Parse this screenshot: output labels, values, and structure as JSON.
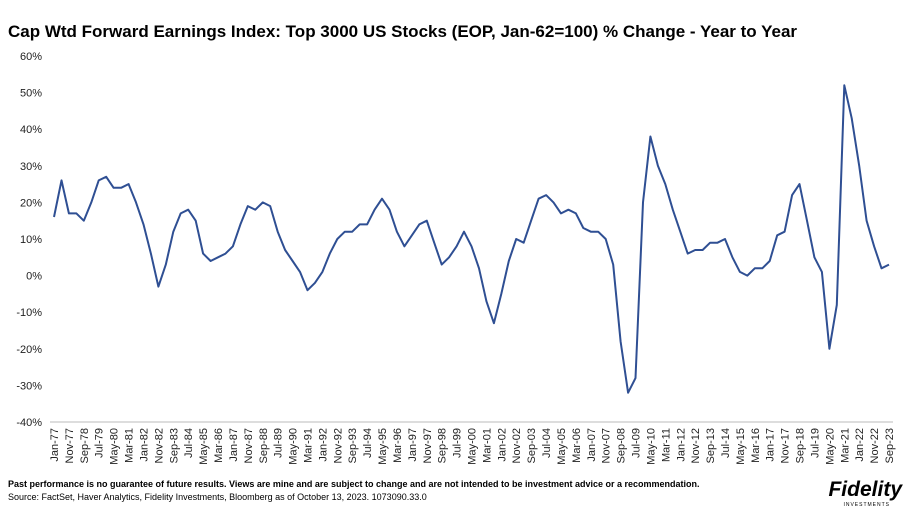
{
  "chart_data": {
    "type": "line",
    "title": "Cap Wtd Forward Earnings Index: Top 3000 US Stocks (EOP, Jan-62=100) % Change - Year to Year",
    "categories": [
      "Jan-77",
      null,
      "Nov-77",
      null,
      "Sep-78",
      null,
      "Jul-79",
      null,
      "May-80",
      null,
      "Mar-81",
      null,
      "Jan-82",
      null,
      "Nov-82",
      null,
      "Sep-83",
      null,
      "Jul-84",
      null,
      "May-85",
      null,
      "Mar-86",
      null,
      "Jan-87",
      null,
      "Nov-87",
      null,
      "Sep-88",
      null,
      "Jul-89",
      null,
      "May-90",
      null,
      "Mar-91",
      null,
      "Jan-92",
      null,
      "Nov-92",
      null,
      "Sep-93",
      null,
      "Jul-94",
      null,
      "May-95",
      null,
      "Mar-96",
      null,
      "Jan-97",
      null,
      "Nov-97",
      null,
      "Sep-98",
      null,
      "Jul-99",
      null,
      "May-00",
      null,
      "Mar-01",
      null,
      "Jan-02",
      null,
      "Nov-02",
      null,
      "Sep-03",
      null,
      "Jul-04",
      null,
      "May-05",
      null,
      "Mar-06",
      null,
      "Jan-07",
      null,
      "Nov-07",
      null,
      "Sep-08",
      null,
      "Jul-09",
      null,
      "May-10",
      null,
      "Mar-11",
      null,
      "Jan-12",
      null,
      "Nov-12",
      null,
      "Sep-13",
      null,
      "Jul-14",
      null,
      "May-15",
      null,
      "Mar-16",
      null,
      "Jan-17",
      null,
      "Nov-17",
      null,
      "Sep-18",
      null,
      "Jul-19",
      null,
      "May-20",
      null,
      "Mar-21",
      null,
      "Jan-22",
      null,
      "Nov-22",
      null,
      "Sep-23"
    ],
    "values": [
      16,
      26,
      17,
      17,
      15,
      20,
      26,
      27,
      24,
      24,
      25,
      20,
      14,
      6,
      -3,
      3,
      12,
      17,
      18,
      15,
      6,
      4,
      5,
      6,
      8,
      14,
      19,
      18,
      20,
      19,
      12,
      7,
      4,
      1,
      -4,
      -2,
      1,
      6,
      10,
      12,
      12,
      14,
      14,
      18,
      21,
      18,
      12,
      8,
      11,
      14,
      15,
      9,
      3,
      5,
      8,
      12,
      8,
      2,
      -7,
      -13,
      -5,
      4,
      10,
      9,
      15,
      21,
      22,
      20,
      17,
      18,
      17,
      13,
      12,
      12,
      10,
      3,
      -18,
      -32,
      -28,
      20,
      38,
      30,
      25,
      18,
      12,
      6,
      7,
      7,
      9,
      9,
      10,
      5,
      1,
      0,
      2,
      2,
      4,
      11,
      12,
      22,
      25,
      15,
      5,
      1,
      -20,
      -8,
      52,
      43,
      30,
      15,
      8,
      2,
      3
    ],
    "color": "#2f4f93",
    "ylim": [
      -40,
      60
    ],
    "yticks": [
      {
        "value": -40,
        "label": "-40%"
      },
      {
        "value": -30,
        "label": "-30%"
      },
      {
        "value": -20,
        "label": "-20%"
      },
      {
        "value": -10,
        "label": "-10%"
      },
      {
        "value": 0,
        "label": "0%"
      },
      {
        "value": 10,
        "label": "10%"
      },
      {
        "value": 20,
        "label": "20%"
      },
      {
        "value": 30,
        "label": "30%"
      },
      {
        "value": 40,
        "label": "40%"
      },
      {
        "value": 50,
        "label": "50%"
      },
      {
        "value": 60,
        "label": "60%"
      }
    ],
    "grid": false,
    "disclaimer": "Past performance is no guarantee of future results. Views are mine and are subject to change and are not intended to be investment advice or a recommendation.",
    "source": "Source: FactSet, Haver Analytics, Fidelity Investments, Bloomberg as of October 13, 2023. 1073090.33.0",
    "logo": {
      "name": "Fidelity",
      "sub": "INVESTMENTS"
    }
  }
}
